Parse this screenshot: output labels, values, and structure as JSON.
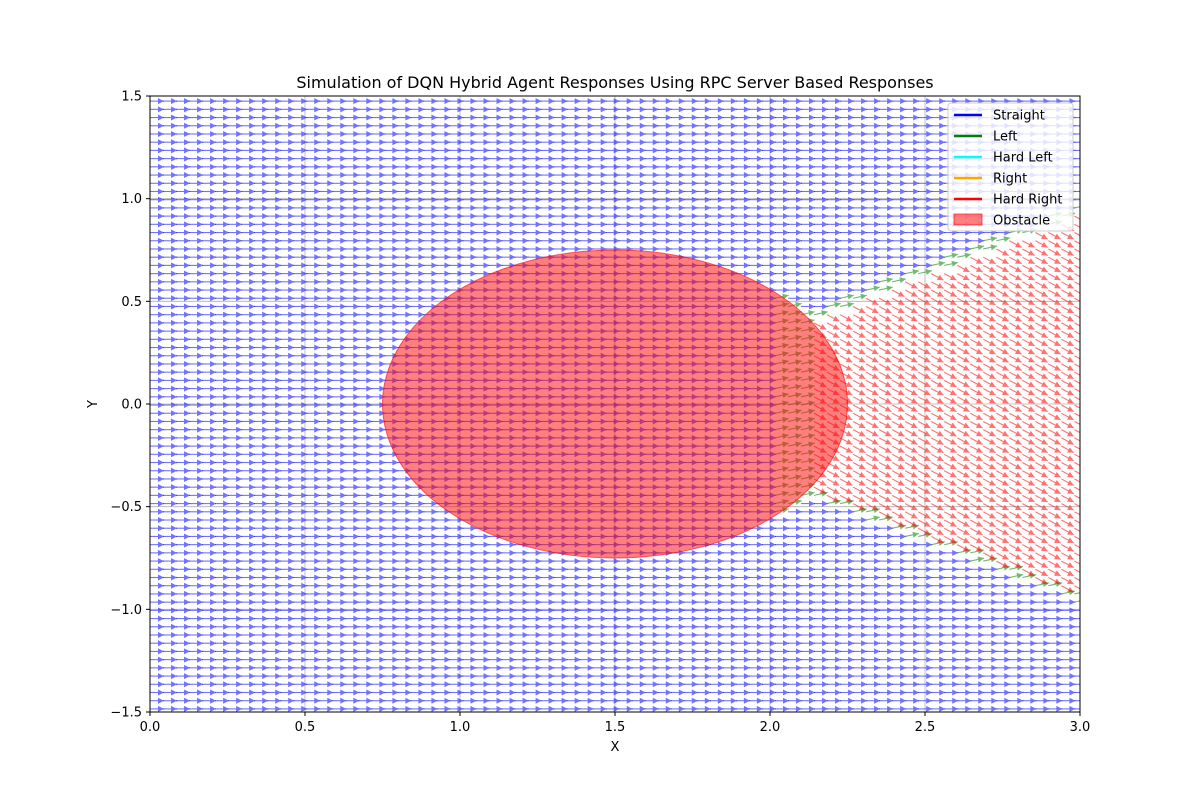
{
  "chart_data": {
    "type": "quiver",
    "title": "Simulation of DQN Hybrid Agent Responses Using RPC Server Based Responses",
    "xlabel": "X",
    "ylabel": "Y",
    "xlim": [
      0.0,
      3.0
    ],
    "ylim": [
      -1.5,
      1.5
    ],
    "xticks": [
      "0.0",
      "0.5",
      "1.0",
      "1.5",
      "2.0",
      "2.5",
      "3.0"
    ],
    "yticks": [
      "1.5",
      "1.0",
      "0.5",
      "0.0",
      "−0.5",
      "−1.0",
      "−1.5"
    ],
    "grid": true,
    "legend_position": "upper right",
    "grid_step": 0.04,
    "obstacle": {
      "name": "Obstacle",
      "shape": "ellipse",
      "center": [
        1.5,
        0.0
      ],
      "radius_x": 0.75,
      "radius_y": 0.75,
      "color": "#ff0000",
      "opacity": 0.5
    },
    "actions": [
      {
        "name": "Straight",
        "color": "#0000ff",
        "angle_deg": 0
      },
      {
        "name": "Left",
        "color": "#008000",
        "angle_deg": 20
      },
      {
        "name": "Hard Left",
        "color": "#00ffff",
        "angle_deg": 40
      },
      {
        "name": "Right",
        "color": "#ffa500",
        "angle_deg": -20
      },
      {
        "name": "Hard Right",
        "color": "#ff0000",
        "angle_deg": -40
      }
    ],
    "regions": {
      "hard_right": "zone between obstacle and x=3.0 bounded by |y| < 1.0 (behind obstacle, right side)",
      "left": "thin band at the boundary of the hard-right zone"
    }
  }
}
